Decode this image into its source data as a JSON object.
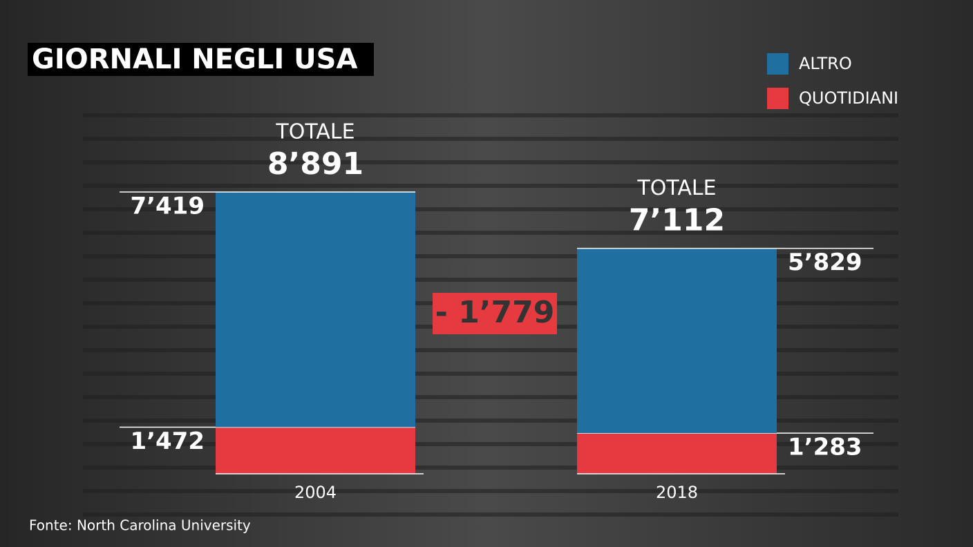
{
  "chart_data": {
    "type": "bar",
    "stacked": true,
    "title": "GIORNALI NEGLI USA",
    "source": "Fonte: North Carolina University",
    "categories": [
      "2004",
      "2018"
    ],
    "series": [
      {
        "name": "QUOTIDIANI",
        "color": "#e53b40",
        "values": [
          1472,
          1283
        ],
        "value_labels": [
          "1’472",
          "1’283"
        ]
      },
      {
        "name": "ALTRO",
        "color": "#1f70a1",
        "values": [
          7419,
          5829
        ],
        "value_labels": [
          "7’419",
          "5’829"
        ]
      }
    ],
    "totals": {
      "label": "TOTALE",
      "values": [
        8891,
        7112
      ],
      "value_labels": [
        "8’891",
        "7’112"
      ]
    },
    "difference": {
      "value": -1779,
      "label": "- 1’779"
    }
  }
}
